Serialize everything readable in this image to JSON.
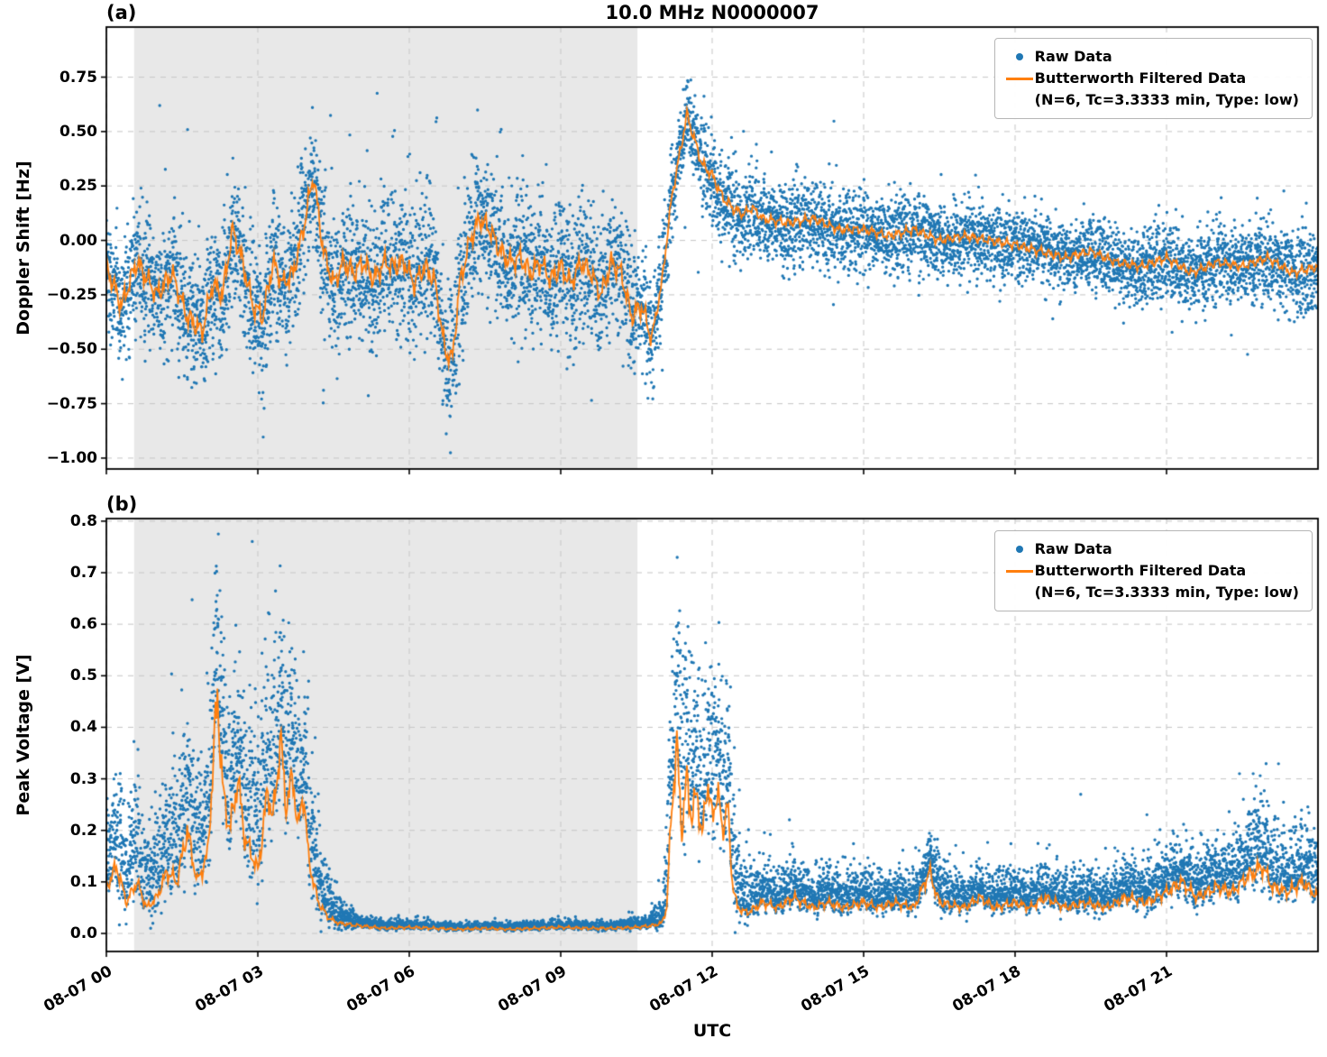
{
  "legend": {
    "raw_label": "Raw Data",
    "filtered_label": "Butterworth Filtered Data",
    "filtered_params": "(N=6, Tc=3.3333 min, Type: low)"
  },
  "colors": {
    "raw": "#1f77b4",
    "filtered": "#ff7f0e",
    "shade": "#e8e8e8",
    "grid": "#c9c9c9",
    "axis": "#000000",
    "background": "#ffffff"
  },
  "chart_data": [
    {
      "type": "scatter",
      "panel_label": "(a)",
      "title": "10.0 MHz N0000007",
      "ylabel": "Doppler Shift [Hz]",
      "xlabel": "UTC",
      "x_unit": "hours after 08-07 00:00 UTC",
      "xlim_hours": [
        0,
        24
      ],
      "ylim": [
        -1.05,
        0.98
      ],
      "grid": "dashed",
      "legend_position": "upper right",
      "shaded_region_hours": [
        0.55,
        10.52
      ],
      "x_ticks": {
        "hours": [
          0,
          3,
          6,
          9,
          12,
          15,
          18,
          21
        ],
        "labels": [
          "08-07 00",
          "08-07 03",
          "08-07 06",
          "08-07 09",
          "08-07 12",
          "08-07 15",
          "08-07 18",
          "08-07 21"
        ],
        "labels_visible": false
      },
      "y_ticks": {
        "values": [
          0.75,
          0.5,
          0.25,
          0,
          -0.25,
          -0.5,
          -0.75,
          -1
        ],
        "labels": [
          "0.75",
          "0.50",
          "0.25",
          "0.00",
          "−0.25",
          "−0.50",
          "−0.75",
          "−1.00"
        ]
      },
      "series": [
        {
          "name": "Raw Data",
          "type": "scatter",
          "color": "#1f77b4"
        },
        {
          "name": "Butterworth Filtered Data (N=6, Tc=3.3333 min, Type: low)",
          "type": "line",
          "color": "#ff7f0e"
        }
      ],
      "filtered_line_hours_values": [
        [
          0,
          -0.12
        ],
        [
          0.3,
          -0.3
        ],
        [
          0.6,
          -0.1
        ],
        [
          1,
          -0.25
        ],
        [
          1.3,
          -0.15
        ],
        [
          1.6,
          -0.35
        ],
        [
          1.9,
          -0.42
        ],
        [
          2.1,
          -0.2
        ],
        [
          2.3,
          -0.25
        ],
        [
          2.5,
          0.05
        ],
        [
          2.7,
          -0.1
        ],
        [
          2.9,
          -0.3
        ],
        [
          3.1,
          -0.35
        ],
        [
          3.3,
          -0.1
        ],
        [
          3.5,
          -0.2
        ],
        [
          3.7,
          -0.15
        ],
        [
          3.9,
          0.05
        ],
        [
          4.1,
          0.3
        ],
        [
          4.3,
          -0.05
        ],
        [
          4.5,
          -0.2
        ],
        [
          4.7,
          -0.1
        ],
        [
          4.9,
          -0.15
        ],
        [
          5.1,
          -0.1
        ],
        [
          5.3,
          -0.18
        ],
        [
          5.5,
          -0.1
        ],
        [
          5.7,
          -0.12
        ],
        [
          5.9,
          -0.1
        ],
        [
          6.1,
          -0.2
        ],
        [
          6.3,
          -0.12
        ],
        [
          6.5,
          -0.18
        ],
        [
          6.7,
          -0.5
        ],
        [
          6.85,
          -0.55
        ],
        [
          7,
          -0.2
        ],
        [
          7.2,
          0
        ],
        [
          7.4,
          0.1
        ],
        [
          7.6,
          0.05
        ],
        [
          7.8,
          -0.05
        ],
        [
          8,
          -0.1
        ],
        [
          8.2,
          -0.08
        ],
        [
          8.4,
          -0.15
        ],
        [
          8.6,
          -0.1
        ],
        [
          8.8,
          -0.18
        ],
        [
          9,
          -0.12
        ],
        [
          9.2,
          -0.2
        ],
        [
          9.4,
          -0.1
        ],
        [
          9.6,
          -0.15
        ],
        [
          9.8,
          -0.25
        ],
        [
          10,
          -0.1
        ],
        [
          10.2,
          -0.15
        ],
        [
          10.4,
          -0.35
        ],
        [
          10.6,
          -0.3
        ],
        [
          10.8,
          -0.45
        ],
        [
          11,
          -0.2
        ],
        [
          11.2,
          0.2
        ],
        [
          11.4,
          0.45
        ],
        [
          11.5,
          0.58
        ],
        [
          11.6,
          0.5
        ],
        [
          11.8,
          0.35
        ],
        [
          12,
          0.3
        ],
        [
          12.2,
          0.2
        ],
        [
          12.4,
          0.15
        ],
        [
          12.6,
          0.12
        ],
        [
          12.8,
          0.15
        ],
        [
          13,
          0.1
        ],
        [
          13.5,
          0.08
        ],
        [
          14,
          0.1
        ],
        [
          14.5,
          0.05
        ],
        [
          15,
          0.05
        ],
        [
          15.5,
          0.02
        ],
        [
          16,
          0.05
        ],
        [
          16.5,
          0
        ],
        [
          17,
          0.02
        ],
        [
          17.5,
          0
        ],
        [
          18,
          -0.02
        ],
        [
          18.5,
          -0.05
        ],
        [
          19,
          -0.08
        ],
        [
          19.5,
          -0.05
        ],
        [
          20,
          -0.1
        ],
        [
          20.5,
          -0.12
        ],
        [
          21,
          -0.08
        ],
        [
          21.5,
          -0.15
        ],
        [
          22,
          -0.1
        ],
        [
          22.5,
          -0.12
        ],
        [
          23,
          -0.08
        ],
        [
          23.5,
          -0.15
        ],
        [
          24,
          -0.12
        ]
      ],
      "raw_scatter_std_hours_values": [
        [
          0,
          0.13
        ],
        [
          2,
          0.15
        ],
        [
          4,
          0.16
        ],
        [
          6,
          0.16
        ],
        [
          8,
          0.15
        ],
        [
          10,
          0.15
        ],
        [
          10.8,
          0.13
        ],
        [
          11.3,
          0.09
        ],
        [
          11.6,
          0.08
        ],
        [
          12,
          0.1
        ],
        [
          12.5,
          0.1
        ],
        [
          13,
          0.1
        ],
        [
          14,
          0.1
        ],
        [
          15,
          0.09
        ],
        [
          16,
          0.09
        ],
        [
          17,
          0.08
        ],
        [
          18,
          0.08
        ],
        [
          19,
          0.08
        ],
        [
          20,
          0.08
        ],
        [
          21,
          0.09
        ],
        [
          22,
          0.09
        ],
        [
          23,
          0.09
        ],
        [
          24,
          0.1
        ]
      ]
    },
    {
      "type": "scatter",
      "panel_label": "(b)",
      "title": "",
      "ylabel": "Peak Voltage [V]",
      "xlabel": "UTC",
      "x_unit": "hours after 08-07 00:00 UTC",
      "xlim_hours": [
        0,
        24
      ],
      "ylim": [
        -0.035,
        0.805
      ],
      "grid": "dashed",
      "legend_position": "upper right",
      "shaded_region_hours": [
        0.55,
        10.52
      ],
      "x_ticks": {
        "hours": [
          0,
          3,
          6,
          9,
          12,
          15,
          18,
          21
        ],
        "labels": [
          "08-07 00",
          "08-07 03",
          "08-07 06",
          "08-07 09",
          "08-07 12",
          "08-07 15",
          "08-07 18",
          "08-07 21"
        ],
        "labels_visible": true
      },
      "y_ticks": {
        "values": [
          0.8,
          0.7,
          0.6,
          0.5,
          0.4,
          0.3,
          0.2,
          0.1,
          0
        ],
        "labels": [
          "0.8",
          "0.7",
          "0.6",
          "0.5",
          "0.4",
          "0.3",
          "0.2",
          "0.1",
          "0.0"
        ]
      },
      "series": [
        {
          "name": "Raw Data",
          "type": "scatter",
          "color": "#1f77b4"
        },
        {
          "name": "Butterworth Filtered Data (N=6, Tc=3.3333 min, Type: low)",
          "type": "line",
          "color": "#ff7f0e"
        }
      ],
      "filtered_line_hours_values": [
        [
          0,
          0.09
        ],
        [
          0.2,
          0.13
        ],
        [
          0.4,
          0.06
        ],
        [
          0.6,
          0.1
        ],
        [
          0.8,
          0.05
        ],
        [
          1,
          0.07
        ],
        [
          1.2,
          0.12
        ],
        [
          1.4,
          0.1
        ],
        [
          1.6,
          0.2
        ],
        [
          1.8,
          0.1
        ],
        [
          2,
          0.15
        ],
        [
          2.1,
          0.3
        ],
        [
          2.2,
          0.47
        ],
        [
          2.3,
          0.28
        ],
        [
          2.45,
          0.2
        ],
        [
          2.6,
          0.3
        ],
        [
          2.75,
          0.18
        ],
        [
          2.9,
          0.15
        ],
        [
          3,
          0.12
        ],
        [
          3.1,
          0.2
        ],
        [
          3.2,
          0.28
        ],
        [
          3.3,
          0.22
        ],
        [
          3.45,
          0.38
        ],
        [
          3.55,
          0.25
        ],
        [
          3.7,
          0.3
        ],
        [
          3.8,
          0.2
        ],
        [
          3.9,
          0.28
        ],
        [
          4,
          0.15
        ],
        [
          4.1,
          0.1
        ],
        [
          4.2,
          0.06
        ],
        [
          4.4,
          0.03
        ],
        [
          4.6,
          0.02
        ],
        [
          5,
          0.015
        ],
        [
          5.5,
          0.01
        ],
        [
          6,
          0.012
        ],
        [
          6.5,
          0.01
        ],
        [
          7,
          0.008
        ],
        [
          7.5,
          0.01
        ],
        [
          8,
          0.008
        ],
        [
          8.5,
          0.01
        ],
        [
          9,
          0.012
        ],
        [
          9.5,
          0.01
        ],
        [
          10,
          0.01
        ],
        [
          10.5,
          0.012
        ],
        [
          10.8,
          0.015
        ],
        [
          11,
          0.02
        ],
        [
          11.1,
          0.05
        ],
        [
          11.2,
          0.25
        ],
        [
          11.3,
          0.36
        ],
        [
          11.4,
          0.2
        ],
        [
          11.5,
          0.3
        ],
        [
          11.6,
          0.22
        ],
        [
          11.7,
          0.28
        ],
        [
          11.8,
          0.18
        ],
        [
          11.9,
          0.3
        ],
        [
          12,
          0.22
        ],
        [
          12.1,
          0.28
        ],
        [
          12.2,
          0.2
        ],
        [
          12.3,
          0.25
        ],
        [
          12.4,
          0.1
        ],
        [
          12.5,
          0.05
        ],
        [
          12.7,
          0.04
        ],
        [
          13,
          0.06
        ],
        [
          13.3,
          0.05
        ],
        [
          13.6,
          0.07
        ],
        [
          14,
          0.05
        ],
        [
          14.3,
          0.06
        ],
        [
          14.6,
          0.05
        ],
        [
          15,
          0.06
        ],
        [
          15.3,
          0.05
        ],
        [
          15.6,
          0.06
        ],
        [
          16,
          0.05
        ],
        [
          16.3,
          0.12
        ],
        [
          16.5,
          0.06
        ],
        [
          17,
          0.05
        ],
        [
          17.3,
          0.07
        ],
        [
          17.6,
          0.05
        ],
        [
          18,
          0.06
        ],
        [
          18.3,
          0.05
        ],
        [
          18.6,
          0.07
        ],
        [
          19,
          0.05
        ],
        [
          19.4,
          0.06
        ],
        [
          19.8,
          0.05
        ],
        [
          20.2,
          0.07
        ],
        [
          20.6,
          0.06
        ],
        [
          21,
          0.08
        ],
        [
          21.3,
          0.1
        ],
        [
          21.6,
          0.07
        ],
        [
          22,
          0.09
        ],
        [
          22.3,
          0.08
        ],
        [
          22.6,
          0.11
        ],
        [
          22.9,
          0.13
        ],
        [
          23.1,
          0.09
        ],
        [
          23.4,
          0.08
        ],
        [
          23.7,
          0.1
        ],
        [
          24,
          0.07
        ]
      ],
      "raw_scatter_std_hours_values": [
        [
          0,
          0.07
        ],
        [
          0.5,
          0.09
        ],
        [
          1,
          0.08
        ],
        [
          1.5,
          0.1
        ],
        [
          2,
          0.12
        ],
        [
          2.5,
          0.12
        ],
        [
          3,
          0.13
        ],
        [
          3.5,
          0.14
        ],
        [
          4,
          0.1
        ],
        [
          4.5,
          0.03
        ],
        [
          5,
          0.008
        ],
        [
          6,
          0.006
        ],
        [
          7,
          0.005
        ],
        [
          8,
          0.005
        ],
        [
          9,
          0.006
        ],
        [
          10,
          0.006
        ],
        [
          10.7,
          0.008
        ],
        [
          11,
          0.02
        ],
        [
          11.3,
          0.15
        ],
        [
          11.7,
          0.13
        ],
        [
          12,
          0.12
        ],
        [
          12.4,
          0.1
        ],
        [
          12.7,
          0.04
        ],
        [
          13,
          0.035
        ],
        [
          14,
          0.03
        ],
        [
          15,
          0.03
        ],
        [
          16,
          0.03
        ],
        [
          16.4,
          0.04
        ],
        [
          17,
          0.03
        ],
        [
          18,
          0.03
        ],
        [
          19,
          0.03
        ],
        [
          20,
          0.03
        ],
        [
          21,
          0.035
        ],
        [
          21.5,
          0.04
        ],
        [
          22,
          0.04
        ],
        [
          22.8,
          0.06
        ],
        [
          23.5,
          0.045
        ],
        [
          24,
          0.05
        ]
      ]
    }
  ]
}
